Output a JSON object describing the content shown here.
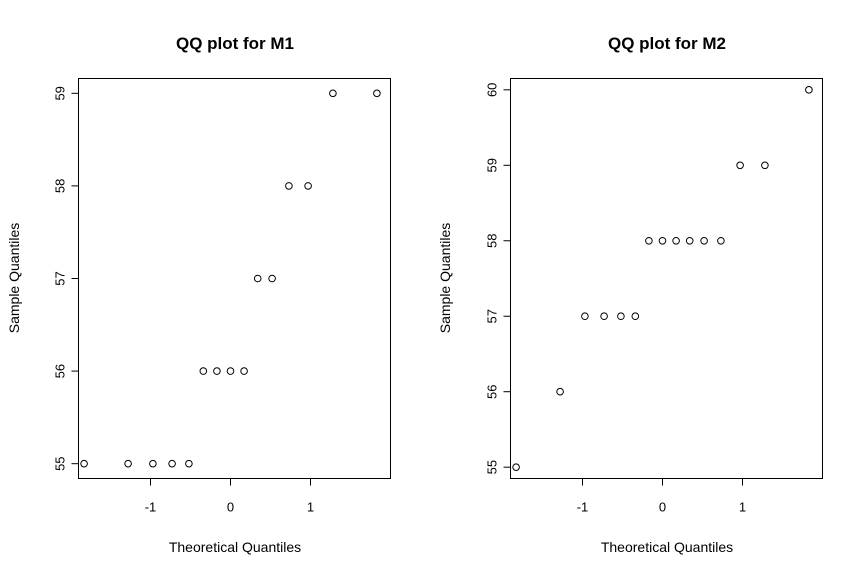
{
  "chart_data": [
    {
      "type": "scatter",
      "title": "QQ plot for M1",
      "xlabel": "Theoretical Quantiles",
      "ylabel": "Sample Quantiles",
      "xlim": [
        -1.9,
        2.0
      ],
      "ylim": [
        54.84,
        59.16
      ],
      "xticks": [
        -1,
        0,
        1
      ],
      "yticks": [
        55,
        56,
        57,
        58,
        59
      ],
      "grid": false,
      "points": [
        {
          "x": -1.83,
          "y": 55
        },
        {
          "x": -1.28,
          "y": 55
        },
        {
          "x": -0.97,
          "y": 55
        },
        {
          "x": -0.73,
          "y": 55
        },
        {
          "x": -0.52,
          "y": 55
        },
        {
          "x": -0.34,
          "y": 56
        },
        {
          "x": -0.17,
          "y": 56
        },
        {
          "x": 0.0,
          "y": 56
        },
        {
          "x": 0.17,
          "y": 56
        },
        {
          "x": 0.34,
          "y": 57
        },
        {
          "x": 0.52,
          "y": 57
        },
        {
          "x": 0.73,
          "y": 58
        },
        {
          "x": 0.97,
          "y": 58
        },
        {
          "x": 1.28,
          "y": 59
        },
        {
          "x": 1.83,
          "y": 59
        }
      ]
    },
    {
      "type": "scatter",
      "title": "QQ plot for M2",
      "xlabel": "Theoretical Quantiles",
      "ylabel": "Sample Quantiles",
      "xlim": [
        -1.9,
        2.0
      ],
      "ylim": [
        54.85,
        60.15
      ],
      "xticks": [
        -1,
        0,
        1
      ],
      "yticks": [
        55,
        56,
        57,
        58,
        59,
        60
      ],
      "grid": false,
      "points": [
        {
          "x": -1.83,
          "y": 55
        },
        {
          "x": -1.28,
          "y": 56
        },
        {
          "x": -0.97,
          "y": 57
        },
        {
          "x": -0.73,
          "y": 57
        },
        {
          "x": -0.52,
          "y": 57
        },
        {
          "x": -0.34,
          "y": 57
        },
        {
          "x": -0.17,
          "y": 58
        },
        {
          "x": 0.0,
          "y": 58
        },
        {
          "x": 0.17,
          "y": 58
        },
        {
          "x": 0.34,
          "y": 58
        },
        {
          "x": 0.52,
          "y": 58
        },
        {
          "x": 0.73,
          "y": 58
        },
        {
          "x": 0.97,
          "y": 59
        },
        {
          "x": 1.28,
          "y": 59
        },
        {
          "x": 1.83,
          "y": 60
        }
      ]
    }
  ]
}
